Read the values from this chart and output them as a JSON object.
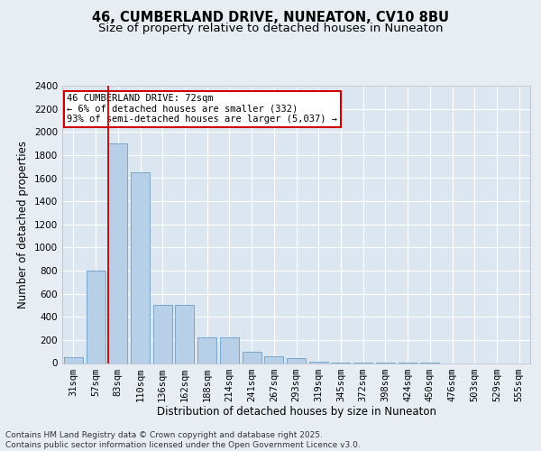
{
  "title_line1": "46, CUMBERLAND DRIVE, NUNEATON, CV10 8BU",
  "title_line2": "Size of property relative to detached houses in Nuneaton",
  "xlabel": "Distribution of detached houses by size in Nuneaton",
  "ylabel": "Number of detached properties",
  "categories": [
    "31sqm",
    "57sqm",
    "83sqm",
    "110sqm",
    "136sqm",
    "162sqm",
    "188sqm",
    "214sqm",
    "241sqm",
    "267sqm",
    "293sqm",
    "319sqm",
    "345sqm",
    "372sqm",
    "398sqm",
    "424sqm",
    "450sqm",
    "476sqm",
    "503sqm",
    "529sqm",
    "555sqm"
  ],
  "values": [
    50,
    800,
    1900,
    1650,
    500,
    500,
    225,
    225,
    100,
    60,
    45,
    15,
    5,
    3,
    2,
    1,
    1,
    0,
    0,
    0,
    0
  ],
  "bar_color": "#b8cfe8",
  "bar_edge_color": "#6b9ec8",
  "vline_x": 1.575,
  "vline_color": "#cc0000",
  "annotation_text": "46 CUMBERLAND DRIVE: 72sqm\n← 6% of detached houses are smaller (332)\n93% of semi-detached houses are larger (5,037) →",
  "annotation_box_color": "#ffffff",
  "annotation_box_edge": "#cc0000",
  "ylim": [
    0,
    2400
  ],
  "yticks": [
    0,
    200,
    400,
    600,
    800,
    1000,
    1200,
    1400,
    1600,
    1800,
    2000,
    2200,
    2400
  ],
  "background_color": "#e8edf4",
  "plot_background": "#dce6f0",
  "grid_color": "#ffffff",
  "footer_text": "Contains HM Land Registry data © Crown copyright and database right 2025.\nContains public sector information licensed under the Open Government Licence v3.0.",
  "title_fontsize": 10.5,
  "subtitle_fontsize": 9.5,
  "axis_label_fontsize": 8.5,
  "tick_fontsize": 7.5,
  "annotation_fontsize": 7.5,
  "footer_fontsize": 6.5
}
